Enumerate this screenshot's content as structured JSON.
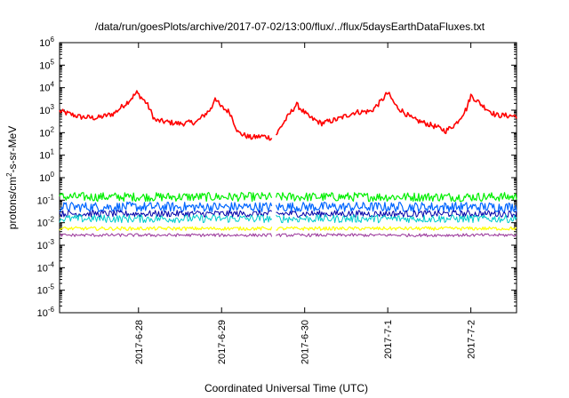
{
  "chart_data": {
    "type": "line",
    "title": "/data/run/goesPlots/archive/2017-07-02/13:00/flux/../flux/5daysEarthDataFluxes.txt",
    "xlabel": "Coordinated Universal Time (UTC)",
    "ylabel": {
      "pre": "protons/cm",
      "sup": "2",
      "post": "-s-sr-MeV"
    },
    "yscale": "log",
    "ylim_exp": [
      -6,
      6
    ],
    "y_ticks": [
      {
        "base": "10",
        "exp": "-6",
        "e": -6
      },
      {
        "base": "10",
        "exp": "-5",
        "e": -5
      },
      {
        "base": "10",
        "exp": "-4",
        "e": -4
      },
      {
        "base": "10",
        "exp": "-3",
        "e": -3
      },
      {
        "base": "10",
        "exp": "-2",
        "e": -2
      },
      {
        "base": "10",
        "exp": "-1",
        "e": -1
      },
      {
        "base": "10",
        "exp": "0",
        "e": 0
      },
      {
        "base": "10",
        "exp": "1",
        "e": 1
      },
      {
        "base": "10",
        "exp": "2",
        "e": 2
      },
      {
        "base": "10",
        "exp": "3",
        "e": 3
      },
      {
        "base": "10",
        "exp": "4",
        "e": 4
      },
      {
        "base": "10",
        "exp": "5",
        "e": 5
      },
      {
        "base": "10",
        "exp": "6",
        "e": 6
      }
    ],
    "xlim_days": [
      -1.95,
      3.55
    ],
    "x_ticks": [
      {
        "label": "2017-6-28",
        "day": -1.0
      },
      {
        "label": "2017-6-29",
        "day": 0.0
      },
      {
        "label": "2017-6-30",
        "day": 1.0
      },
      {
        "label": "2017-7-1",
        "day": 2.0
      },
      {
        "label": "2017-7-2",
        "day": 3.0
      }
    ],
    "gap_day": 0.63,
    "series": [
      {
        "color": "#ff0000",
        "noise": 0.12,
        "width": 1.6,
        "points": [
          [
            -1.95,
            900
          ],
          [
            -1.7,
            500
          ],
          [
            -1.5,
            450
          ],
          [
            -1.3,
            700
          ],
          [
            -1.12,
            2500
          ],
          [
            -1.02,
            6000
          ],
          [
            -0.9,
            2000
          ],
          [
            -0.8,
            350
          ],
          [
            -0.5,
            250
          ],
          [
            -0.3,
            300
          ],
          [
            -0.12,
            1200
          ],
          [
            -0.08,
            4000
          ],
          [
            -0.02,
            1500
          ],
          [
            0.1,
            800
          ],
          [
            0.2,
            100
          ],
          [
            0.35,
            60
          ],
          [
            0.5,
            70
          ],
          [
            0.63,
            55
          ],
          [
            0.72,
            200
          ],
          [
            0.9,
            1800
          ],
          [
            1.05,
            500
          ],
          [
            1.2,
            260
          ],
          [
            1.4,
            400
          ],
          [
            1.6,
            800
          ],
          [
            1.8,
            900
          ],
          [
            1.92,
            2500
          ],
          [
            2.0,
            6000
          ],
          [
            2.1,
            1500
          ],
          [
            2.3,
            400
          ],
          [
            2.55,
            200
          ],
          [
            2.7,
            120
          ],
          [
            2.82,
            250
          ],
          [
            2.95,
            1200
          ],
          [
            3.0,
            4500
          ],
          [
            3.15,
            1500
          ],
          [
            3.3,
            600
          ],
          [
            3.55,
            550
          ]
        ]
      },
      {
        "color": "#00ee00",
        "noise": 0.2,
        "width": 1.2,
        "points": [
          [
            -1.95,
            0.14
          ],
          [
            3.55,
            0.14
          ]
        ]
      },
      {
        "color": "#0066ff",
        "noise": 0.22,
        "width": 1.2,
        "points": [
          [
            -1.95,
            0.05
          ],
          [
            3.55,
            0.05
          ]
        ]
      },
      {
        "color": "#0000aa",
        "noise": 0.15,
        "width": 1.0,
        "points": [
          [
            -1.95,
            0.025
          ],
          [
            3.55,
            0.025
          ]
        ]
      },
      {
        "color": "#00cccc",
        "noise": 0.18,
        "width": 1.0,
        "points": [
          [
            -1.95,
            0.015
          ],
          [
            3.55,
            0.015
          ]
        ]
      },
      {
        "color": "#ffff00",
        "noise": 0.08,
        "width": 1.2,
        "points": [
          [
            -1.95,
            0.0055
          ],
          [
            3.55,
            0.0055
          ]
        ]
      },
      {
        "color": "#993399",
        "noise": 0.07,
        "width": 1.0,
        "points": [
          [
            -1.95,
            0.0028
          ],
          [
            3.55,
            0.0028
          ]
        ]
      }
    ]
  }
}
